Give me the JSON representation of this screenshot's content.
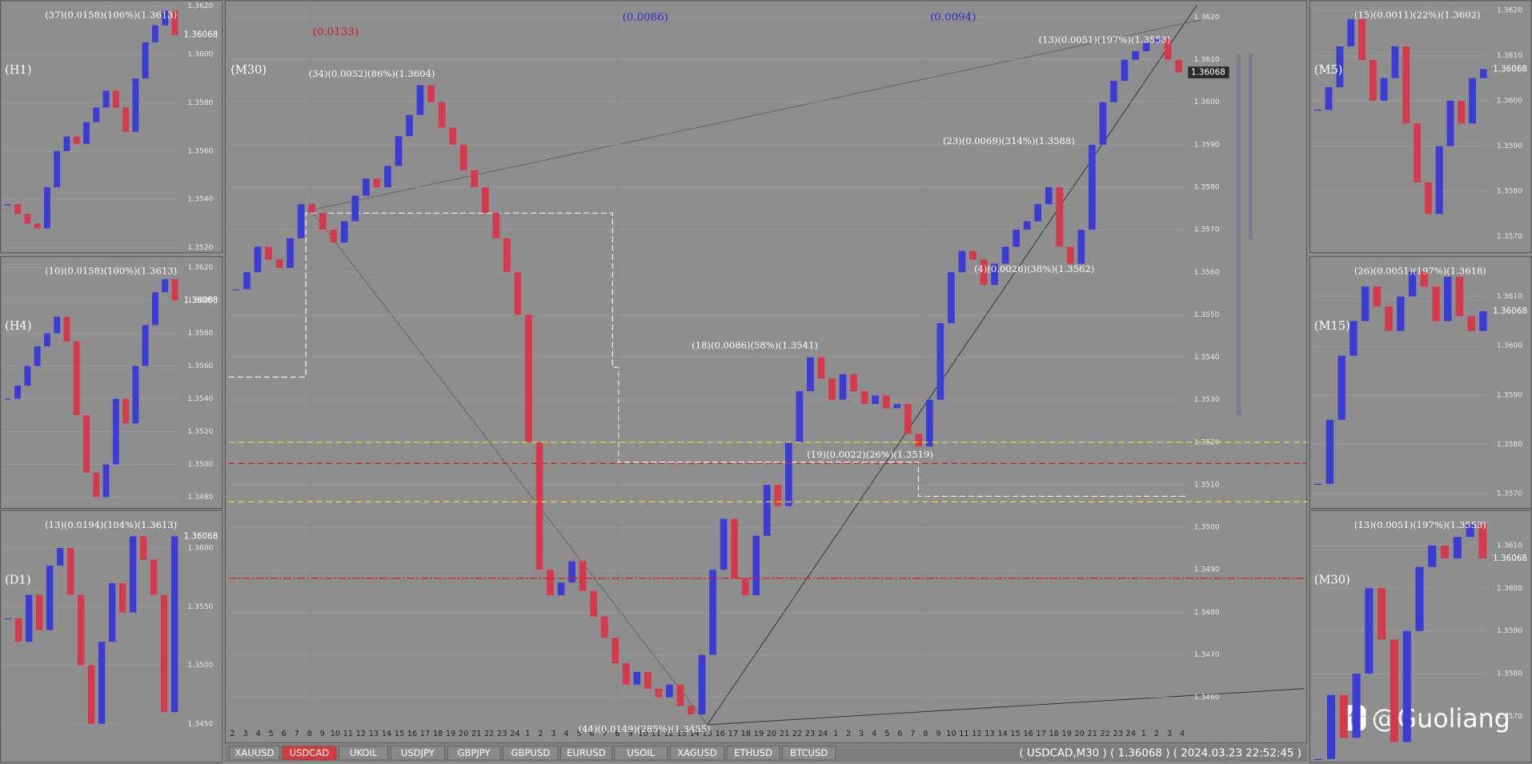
{
  "main": {
    "label": "(M30)",
    "ylim": [
      1.3454,
      1.3624
    ],
    "yticks": [
      {
        "value": 1.362,
        "label": "1.3620"
      },
      {
        "value": 1.361,
        "label": "1.3610"
      },
      {
        "value": 1.36,
        "label": "1.3600"
      },
      {
        "value": 1.359,
        "label": "1.3590"
      },
      {
        "value": 1.358,
        "label": "1.3580"
      },
      {
        "value": 1.357,
        "label": "1.3570"
      },
      {
        "value": 1.356,
        "label": "1.3560"
      },
      {
        "value": 1.355,
        "label": "1.3550"
      },
      {
        "value": 1.354,
        "label": "1.3540"
      },
      {
        "value": 1.353,
        "label": "1.3530"
      },
      {
        "value": 1.352,
        "label": "1.3520"
      },
      {
        "value": 1.351,
        "label": "1.3510"
      },
      {
        "value": 1.35,
        "label": "1.3500"
      },
      {
        "value": 1.349,
        "label": "1.3490"
      },
      {
        "value": 1.348,
        "label": "1.3480"
      },
      {
        "value": 1.347,
        "label": "1.3470"
      },
      {
        "value": 1.346,
        "label": "1.3460"
      }
    ],
    "grid": true,
    "up_color": "#3b3bd6",
    "down_color": "#d6384c",
    "closes": [
      1.3556,
      1.356,
      1.3566,
      1.3563,
      1.3561,
      1.3568,
      1.3576,
      1.3574,
      1.357,
      1.3567,
      1.3572,
      1.3578,
      1.3582,
      1.358,
      1.3585,
      1.3592,
      1.3597,
      1.3604,
      1.36,
      1.3594,
      1.359,
      1.3584,
      1.358,
      1.3574,
      1.3568,
      1.356,
      1.355,
      1.352,
      1.349,
      1.3484,
      1.3487,
      1.3492,
      1.3485,
      1.3479,
      1.3474,
      1.3468,
      1.3463,
      1.3466,
      1.3462,
      1.346,
      1.3463,
      1.3458,
      1.3456,
      1.347,
      1.349,
      1.3502,
      1.3488,
      1.3484,
      1.3498,
      1.351,
      1.3505,
      1.352,
      1.3532,
      1.354,
      1.3535,
      1.353,
      1.3536,
      1.3532,
      1.3529,
      1.3531,
      1.3528,
      1.3529,
      1.3522,
      1.3519,
      1.353,
      1.3548,
      1.356,
      1.3565,
      1.3563,
      1.3557,
      1.3562,
      1.3566,
      1.357,
      1.3572,
      1.3576,
      1.358,
      1.3566,
      1.3562,
      1.357,
      1.359,
      1.36,
      1.3605,
      1.361,
      1.3612,
      1.3614,
      1.3615,
      1.361,
      1.3607
    ],
    "current_price": "1.36068",
    "x_labels": [
      "2",
      "3",
      "4",
      "5",
      "6",
      "7",
      "8",
      "9",
      "10",
      "11",
      "12",
      "13",
      "14",
      "15",
      "16",
      "17",
      "18",
      "19",
      "20",
      "21",
      "22",
      "23",
      "24",
      "1",
      "2",
      "3",
      "4",
      "5",
      "6",
      "7",
      "8",
      "9",
      "10",
      "11",
      "12",
      "13",
      "14",
      "15",
      "16",
      "17",
      "18",
      "19",
      "20",
      "21",
      "22",
      "23",
      "24",
      "1",
      "2",
      "3",
      "4",
      "5",
      "6",
      "7",
      "8",
      "9",
      "10",
      "11",
      "12",
      "13",
      "14",
      "15",
      "16",
      "17",
      "18",
      "19",
      "20",
      "21",
      "22",
      "23",
      "24",
      "1",
      "2",
      "3",
      "4"
    ],
    "annotations": [
      "(0.0133)",
      "(0.0086)",
      "(0.0094)",
      "(34)(0.0052)(86%)(1.3604)",
      "(23)(0.0069)(314%)(1.3588)",
      "(18)(0.0086)(58%)(1.3541)",
      "(19)(0.0022)(26%)(1.3519)",
      "(4)(0.0026)(38%)(1.3562)",
      "(13)(0.0051)(197%)(1.3553)",
      "(44)(0.0149)(285%)(1.3455)"
    ],
    "levels": [
      {
        "value": 1.352,
        "color": "#e8e030",
        "style": "dashed"
      },
      {
        "value": 1.3506,
        "color": "#e8e030",
        "style": "dashed"
      },
      {
        "value": 1.3515,
        "color": "#d02020",
        "style": "dashed"
      },
      {
        "value": 1.3488,
        "color": "#d02020",
        "style": "dashdot"
      }
    ]
  },
  "panels": [
    {
      "label": "(H1)",
      "ylim": [
        1.3519,
        1.3622
      ],
      "yticks": [
        {
          "value": 1.362,
          "label": "1.3620"
        },
        {
          "value": 1.36,
          "label": "1.3600"
        },
        {
          "value": 1.358,
          "label": "1.3580"
        },
        {
          "value": 1.356,
          "label": "1.3560"
        },
        {
          "value": 1.354,
          "label": "1.3540"
        },
        {
          "value": 1.352,
          "label": "1.3520"
        }
      ],
      "closes": [
        1.3538,
        1.3534,
        1.353,
        1.3528,
        1.3545,
        1.356,
        1.3566,
        1.3563,
        1.3572,
        1.3578,
        1.3585,
        1.3578,
        1.3568,
        1.359,
        1.3605,
        1.3612,
        1.3618,
        1.3608
      ],
      "annotation": "(37)(0.0158)(106%)(1.3613)",
      "current_price": "1.36068"
    },
    {
      "label": "(H4)",
      "ylim": [
        1.34746,
        1.36265
      ],
      "yticks": [
        {
          "value": 1.362,
          "label": "1.3620"
        },
        {
          "value": 1.36,
          "label": "1.3600"
        },
        {
          "value": 1.358,
          "label": "1.3580"
        },
        {
          "value": 1.356,
          "label": "1.3560"
        },
        {
          "value": 1.354,
          "label": "1.3540"
        },
        {
          "value": 1.352,
          "label": "1.3520"
        },
        {
          "value": 1.35,
          "label": "1.3500"
        },
        {
          "value": 1.348,
          "label": "1.3480"
        }
      ],
      "closes": [
        1.354,
        1.3548,
        1.356,
        1.3572,
        1.358,
        1.359,
        1.3575,
        1.353,
        1.3495,
        1.348,
        1.35,
        1.354,
        1.3525,
        1.356,
        1.3585,
        1.3605,
        1.3613,
        1.36
      ],
      "annotation": "(10)(0.0158)(100%)(1.3613)",
      "current_price": "1.36068"
    },
    {
      "label": "(D1)",
      "ylim": [
        1.34192,
        1.36317
      ],
      "yticks": [
        {
          "value": 1.36,
          "label": "1.3600"
        },
        {
          "value": 1.355,
          "label": "1.3550"
        },
        {
          "value": 1.35,
          "label": "1.3500"
        },
        {
          "value": 1.345,
          "label": "1.3450"
        }
      ],
      "closes": [
        1.354,
        1.352,
        1.356,
        1.353,
        1.3585,
        1.36,
        1.356,
        1.35,
        1.345,
        1.352,
        1.357,
        1.3545,
        1.361,
        1.359,
        1.356,
        1.346,
        1.361
      ],
      "annotation": "(13)(0.0194)(104%)(1.3613)",
      "current_price": "1.36068"
    },
    {
      "label": "(M5)",
      "ylim": [
        1.3567,
        1.3622
      ],
      "yticks": [
        {
          "value": 1.362,
          "label": "1.3620"
        },
        {
          "value": 1.361,
          "label": "1.3610"
        },
        {
          "value": 1.36,
          "label": "1.3600"
        },
        {
          "value": 1.359,
          "label": "1.3590"
        },
        {
          "value": 1.358,
          "label": "1.3580"
        },
        {
          "value": 1.357,
          "label": "1.3570"
        }
      ],
      "closes": [
        1.3598,
        1.3603,
        1.3612,
        1.3618,
        1.3609,
        1.36,
        1.3605,
        1.3612,
        1.3595,
        1.3582,
        1.3575,
        1.359,
        1.36,
        1.3595,
        1.3605,
        1.3607
      ],
      "annotation": "(15)(0.0011)(22%)(1.3602)",
      "current_price": "1.36068"
    },
    {
      "label": "(M15)",
      "ylim": [
        1.35675,
        1.3618
      ],
      "yticks": [
        {
          "value": 1.361,
          "label": "1.3610"
        },
        {
          "value": 1.36,
          "label": "1.3600"
        },
        {
          "value": 1.359,
          "label": "1.3590"
        },
        {
          "value": 1.358,
          "label": "1.3580"
        },
        {
          "value": 1.357,
          "label": "1.3570"
        }
      ],
      "closes": [
        1.3572,
        1.3585,
        1.3598,
        1.3605,
        1.3612,
        1.3608,
        1.3603,
        1.361,
        1.3615,
        1.3612,
        1.3605,
        1.3614,
        1.3606,
        1.3603,
        1.3607
      ],
      "annotation": "(26)(0.0051)(197%)(1.3618)",
      "current_price": "1.36068"
    },
    {
      "label": "(M30)",
      "ylim": [
        1.35598,
        1.36181
      ],
      "yticks": [
        {
          "value": 1.361,
          "label": "1.3610"
        },
        {
          "value": 1.36,
          "label": "1.3600"
        },
        {
          "value": 1.359,
          "label": "1.3590"
        },
        {
          "value": 1.358,
          "label": "1.3580"
        },
        {
          "value": 1.357,
          "label": "1.3570"
        }
      ],
      "closes": [
        1.356,
        1.3575,
        1.3565,
        1.358,
        1.36,
        1.3588,
        1.3564,
        1.359,
        1.3605,
        1.361,
        1.3607,
        1.3612,
        1.3615,
        1.3607
      ],
      "annotation": "(13)(0.0051)(197%)(1.3553)",
      "current_price": "1.36068"
    }
  ],
  "tabs": [
    "XAUUSD",
    "USDCAD",
    "UKOIL",
    "USDJPY",
    "GBPJPY",
    "GBPUSD",
    "EURUSD",
    "USOIL",
    "XAGUSD",
    "ETHUSD",
    "BTCUSD"
  ],
  "active_tab_index": 1,
  "status": "( USDCAD,M30 ) ( 1.36068 ) ( 2024.03.23  22:52:45 )",
  "watermark": "@Guoliang"
}
